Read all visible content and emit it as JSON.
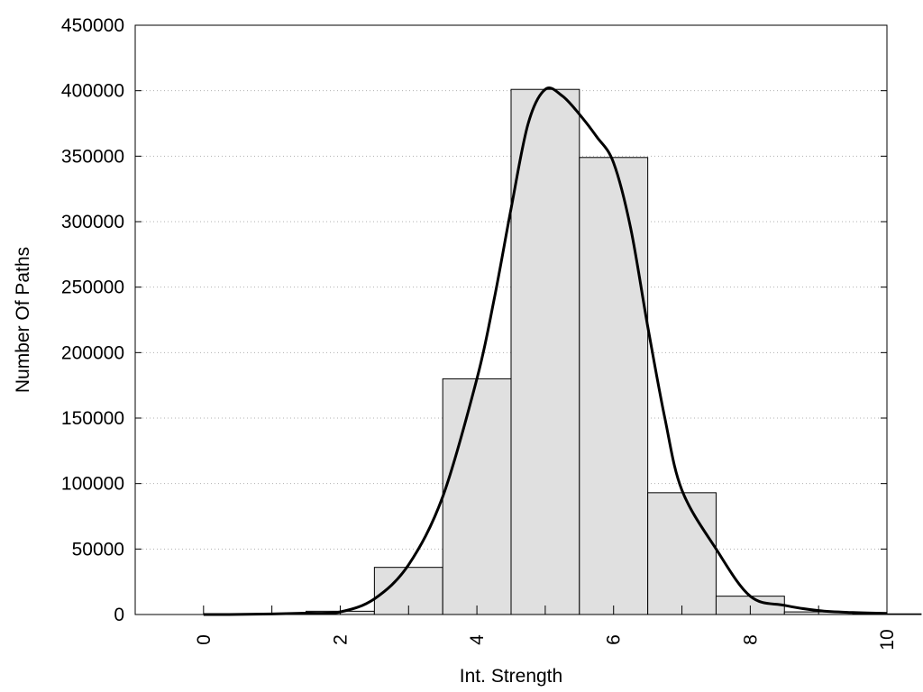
{
  "chart_data": {
    "type": "bar",
    "title": "",
    "xlabel": "Int. Strength",
    "ylabel": "Number Of Paths",
    "xlim": [
      -1,
      10
    ],
    "ylim": [
      0,
      450000
    ],
    "x_ticks": [
      "0",
      "2",
      "4",
      "6",
      "8",
      "10"
    ],
    "y_ticks": [
      "0",
      "50000",
      "100000",
      "150000",
      "200000",
      "250000",
      "300000",
      "350000",
      "400000",
      "450000"
    ],
    "grid": "horizontal dotted",
    "legend": "none",
    "bars": {
      "x": [
        0,
        1,
        2,
        3,
        4,
        5,
        6,
        7,
        8,
        9,
        10
      ],
      "width": 1,
      "values": [
        0,
        200,
        2500,
        36000,
        180000,
        401000,
        349000,
        93000,
        14000,
        2000,
        500
      ]
    },
    "curve": {
      "x": [
        0,
        0.5,
        1,
        1.5,
        2,
        2.5,
        3,
        3.5,
        4,
        4.25,
        4.5,
        4.75,
        5,
        5.25,
        5.5,
        5.75,
        6,
        6.25,
        6.5,
        6.75,
        7,
        7.5,
        8,
        8.5,
        9,
        9.5,
        10
      ],
      "y": [
        0,
        100,
        400,
        1000,
        2000,
        12000,
        38000,
        90000,
        180000,
        240000,
        310000,
        375000,
        401000,
        396000,
        382000,
        365000,
        345000,
        295000,
        220000,
        150000,
        95000,
        50000,
        14000,
        7000,
        3000,
        1500,
        800
      ]
    },
    "colors": {
      "bar_fill": "#e0e0e0",
      "bar_stroke": "#000000",
      "curve": "#000000",
      "grid": "#b0b0b0"
    }
  }
}
